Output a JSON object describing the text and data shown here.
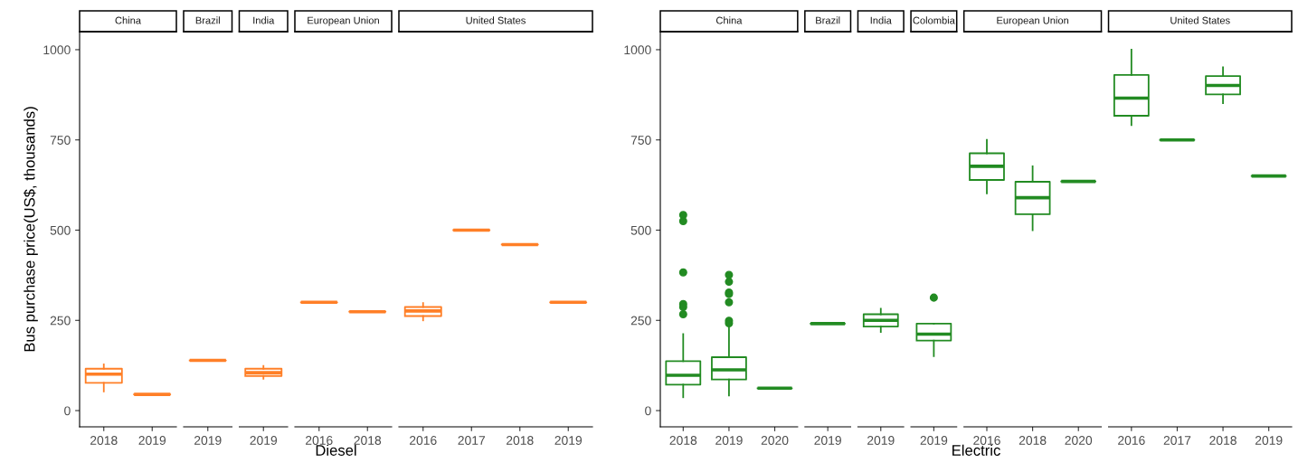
{
  "chart_data": [
    {
      "type": "box",
      "title": "China",
      "ylabel": "Bus purchase price(US$, thousands)",
      "categories": [
        "2018",
        "2019"
      ],
      "ylim": [
        -45,
        1050
      ],
      "yticks": [
        0,
        250,
        500,
        750,
        1000
      ],
      "series": [
        {
          "color": "#ff7f27",
          "boxes": [
            {
              "low": 53,
              "q1": 77,
              "median": 101,
              "q3": 116,
              "high": 128
            },
            {
              "low": 45,
              "q1": 45,
              "median": 45,
              "q3": 45,
              "high": 45
            }
          ]
        }
      ]
    },
    {
      "type": "box",
      "title": "Brazil",
      "categories": [
        "2019"
      ],
      "ylim": [
        -45,
        1050
      ],
      "yticks": [
        0,
        250,
        500,
        750,
        1000
      ],
      "tick_labels": "x",
      "series": [
        {
          "color": "#ff7f27",
          "boxes": [
            {
              "low": 139,
              "q1": 139,
              "median": 139,
              "q3": 139,
              "high": 139
            }
          ]
        }
      ]
    },
    {
      "type": "box",
      "title": "India",
      "categories": [
        "2019"
      ],
      "ylim": [
        -45,
        1050
      ],
      "yticks": [
        0,
        250,
        500,
        750,
        1000
      ],
      "tick_labels": "x",
      "series": [
        {
          "color": "#ff7f27",
          "boxes": [
            {
              "low": 88,
              "q1": 96,
              "median": 105,
              "q3": 116,
              "high": 124
            }
          ]
        }
      ]
    },
    {
      "type": "box",
      "title": "European Union",
      "xlabel": "Diesel",
      "categories": [
        "2016",
        "2018"
      ],
      "ylim": [
        -45,
        1050
      ],
      "yticks": [
        0,
        250,
        500,
        750,
        1000
      ],
      "tick_labels": "x",
      "series": [
        {
          "color": "#ff7f27",
          "boxes": [
            {
              "low": 300,
              "q1": 300,
              "median": 300,
              "q3": 300,
              "high": 300
            },
            {
              "low": 274,
              "q1": 274,
              "median": 274,
              "q3": 274,
              "high": 274
            }
          ]
        }
      ]
    },
    {
      "type": "box",
      "title": "United States",
      "categories": [
        "2016",
        "2017",
        "2018",
        "2019"
      ],
      "ylim": [
        -45,
        1050
      ],
      "yticks": [
        0,
        250,
        500,
        750,
        1000
      ],
      "tick_labels": "x",
      "series": [
        {
          "color": "#ff7f27",
          "boxes": [
            {
              "low": 250,
              "q1": 262,
              "median": 276,
              "q3": 287,
              "high": 298
            },
            {
              "low": 500,
              "q1": 500,
              "median": 500,
              "q3": 500,
              "high": 500
            },
            {
              "low": 460,
              "q1": 460,
              "median": 460,
              "q3": 460,
              "high": 460
            },
            {
              "low": 300,
              "q1": 300,
              "median": 300,
              "q3": 300,
              "high": 300
            }
          ]
        }
      ]
    },
    {
      "type": "box",
      "title": "China",
      "categories": [
        "2018",
        "2019",
        "2020"
      ],
      "ylim": [
        -45,
        1050
      ],
      "yticks": [
        0,
        250,
        500,
        750,
        1000
      ],
      "series": [
        {
          "color": "#228b22",
          "boxes": [
            {
              "low": 37,
              "q1": 72,
              "median": 98,
              "q3": 137,
              "high": 212,
              "outliers": [
                542,
                525,
                383,
                295,
                287,
                267
              ]
            },
            {
              "low": 42,
              "q1": 86,
              "median": 113,
              "q3": 148,
              "high": 234,
              "outliers": [
                376,
                357,
                327,
                323,
                300,
                249,
                242
              ]
            },
            {
              "low": 62,
              "q1": 62,
              "median": 62,
              "q3": 62,
              "high": 62
            }
          ]
        }
      ]
    },
    {
      "type": "box",
      "title": "Brazil",
      "categories": [
        "2019"
      ],
      "ylim": [
        -45,
        1050
      ],
      "yticks": [
        0,
        250,
        500,
        750,
        1000
      ],
      "tick_labels": "x",
      "series": [
        {
          "color": "#228b22",
          "boxes": [
            {
              "low": 241,
              "q1": 241,
              "median": 241,
              "q3": 241,
              "high": 241
            }
          ]
        }
      ]
    },
    {
      "type": "box",
      "title": "India",
      "categories": [
        "2019"
      ],
      "ylim": [
        -45,
        1050
      ],
      "yticks": [
        0,
        250,
        500,
        750,
        1000
      ],
      "tick_labels": "x",
      "series": [
        {
          "color": "#228b22",
          "boxes": [
            {
              "low": 218,
              "q1": 233,
              "median": 250,
              "q3": 267,
              "high": 282
            }
          ]
        }
      ]
    },
    {
      "type": "box",
      "title": "Colombia",
      "categories": [
        "2019"
      ],
      "ylim": [
        -45,
        1050
      ],
      "yticks": [
        0,
        250,
        500,
        750,
        1000
      ],
      "tick_labels": "x",
      "series": [
        {
          "color": "#228b22",
          "boxes": [
            {
              "low": 151,
              "q1": 194,
              "median": 212,
              "q3": 241,
              "high": 241,
              "outliers": [
                313
              ]
            }
          ]
        }
      ]
    },
    {
      "type": "box",
      "title": "European Union",
      "xlabel": "Electric",
      "categories": [
        "2016",
        "2018",
        "2020"
      ],
      "ylim": [
        -45,
        1050
      ],
      "yticks": [
        0,
        250,
        500,
        750,
        1000
      ],
      "tick_labels": "x",
      "series": [
        {
          "color": "#228b22",
          "boxes": [
            {
              "low": 602,
              "q1": 639,
              "median": 677,
              "q3": 713,
              "high": 750
            },
            {
              "low": 500,
              "q1": 544,
              "median": 590,
              "q3": 634,
              "high": 677
            },
            {
              "low": 635,
              "q1": 635,
              "median": 635,
              "q3": 635,
              "high": 635
            }
          ]
        }
      ]
    },
    {
      "type": "box",
      "title": "United States",
      "categories": [
        "2016",
        "2017",
        "2018",
        "2019"
      ],
      "ylim": [
        -45,
        1050
      ],
      "yticks": [
        0,
        250,
        500,
        750,
        1000
      ],
      "tick_labels": "x",
      "series": [
        {
          "color": "#228b22",
          "boxes": [
            {
              "low": 791,
              "q1": 817,
              "median": 866,
              "q3": 930,
              "high": 1000
            },
            {
              "low": 750,
              "q1": 750,
              "median": 750,
              "q3": 750,
              "high": 750
            },
            {
              "low": 852,
              "q1": 876,
              "median": 901,
              "q3": 927,
              "high": 951
            },
            {
              "low": 650,
              "q1": 650,
              "median": 650,
              "q3": 650,
              "high": 650
            }
          ]
        }
      ]
    }
  ]
}
